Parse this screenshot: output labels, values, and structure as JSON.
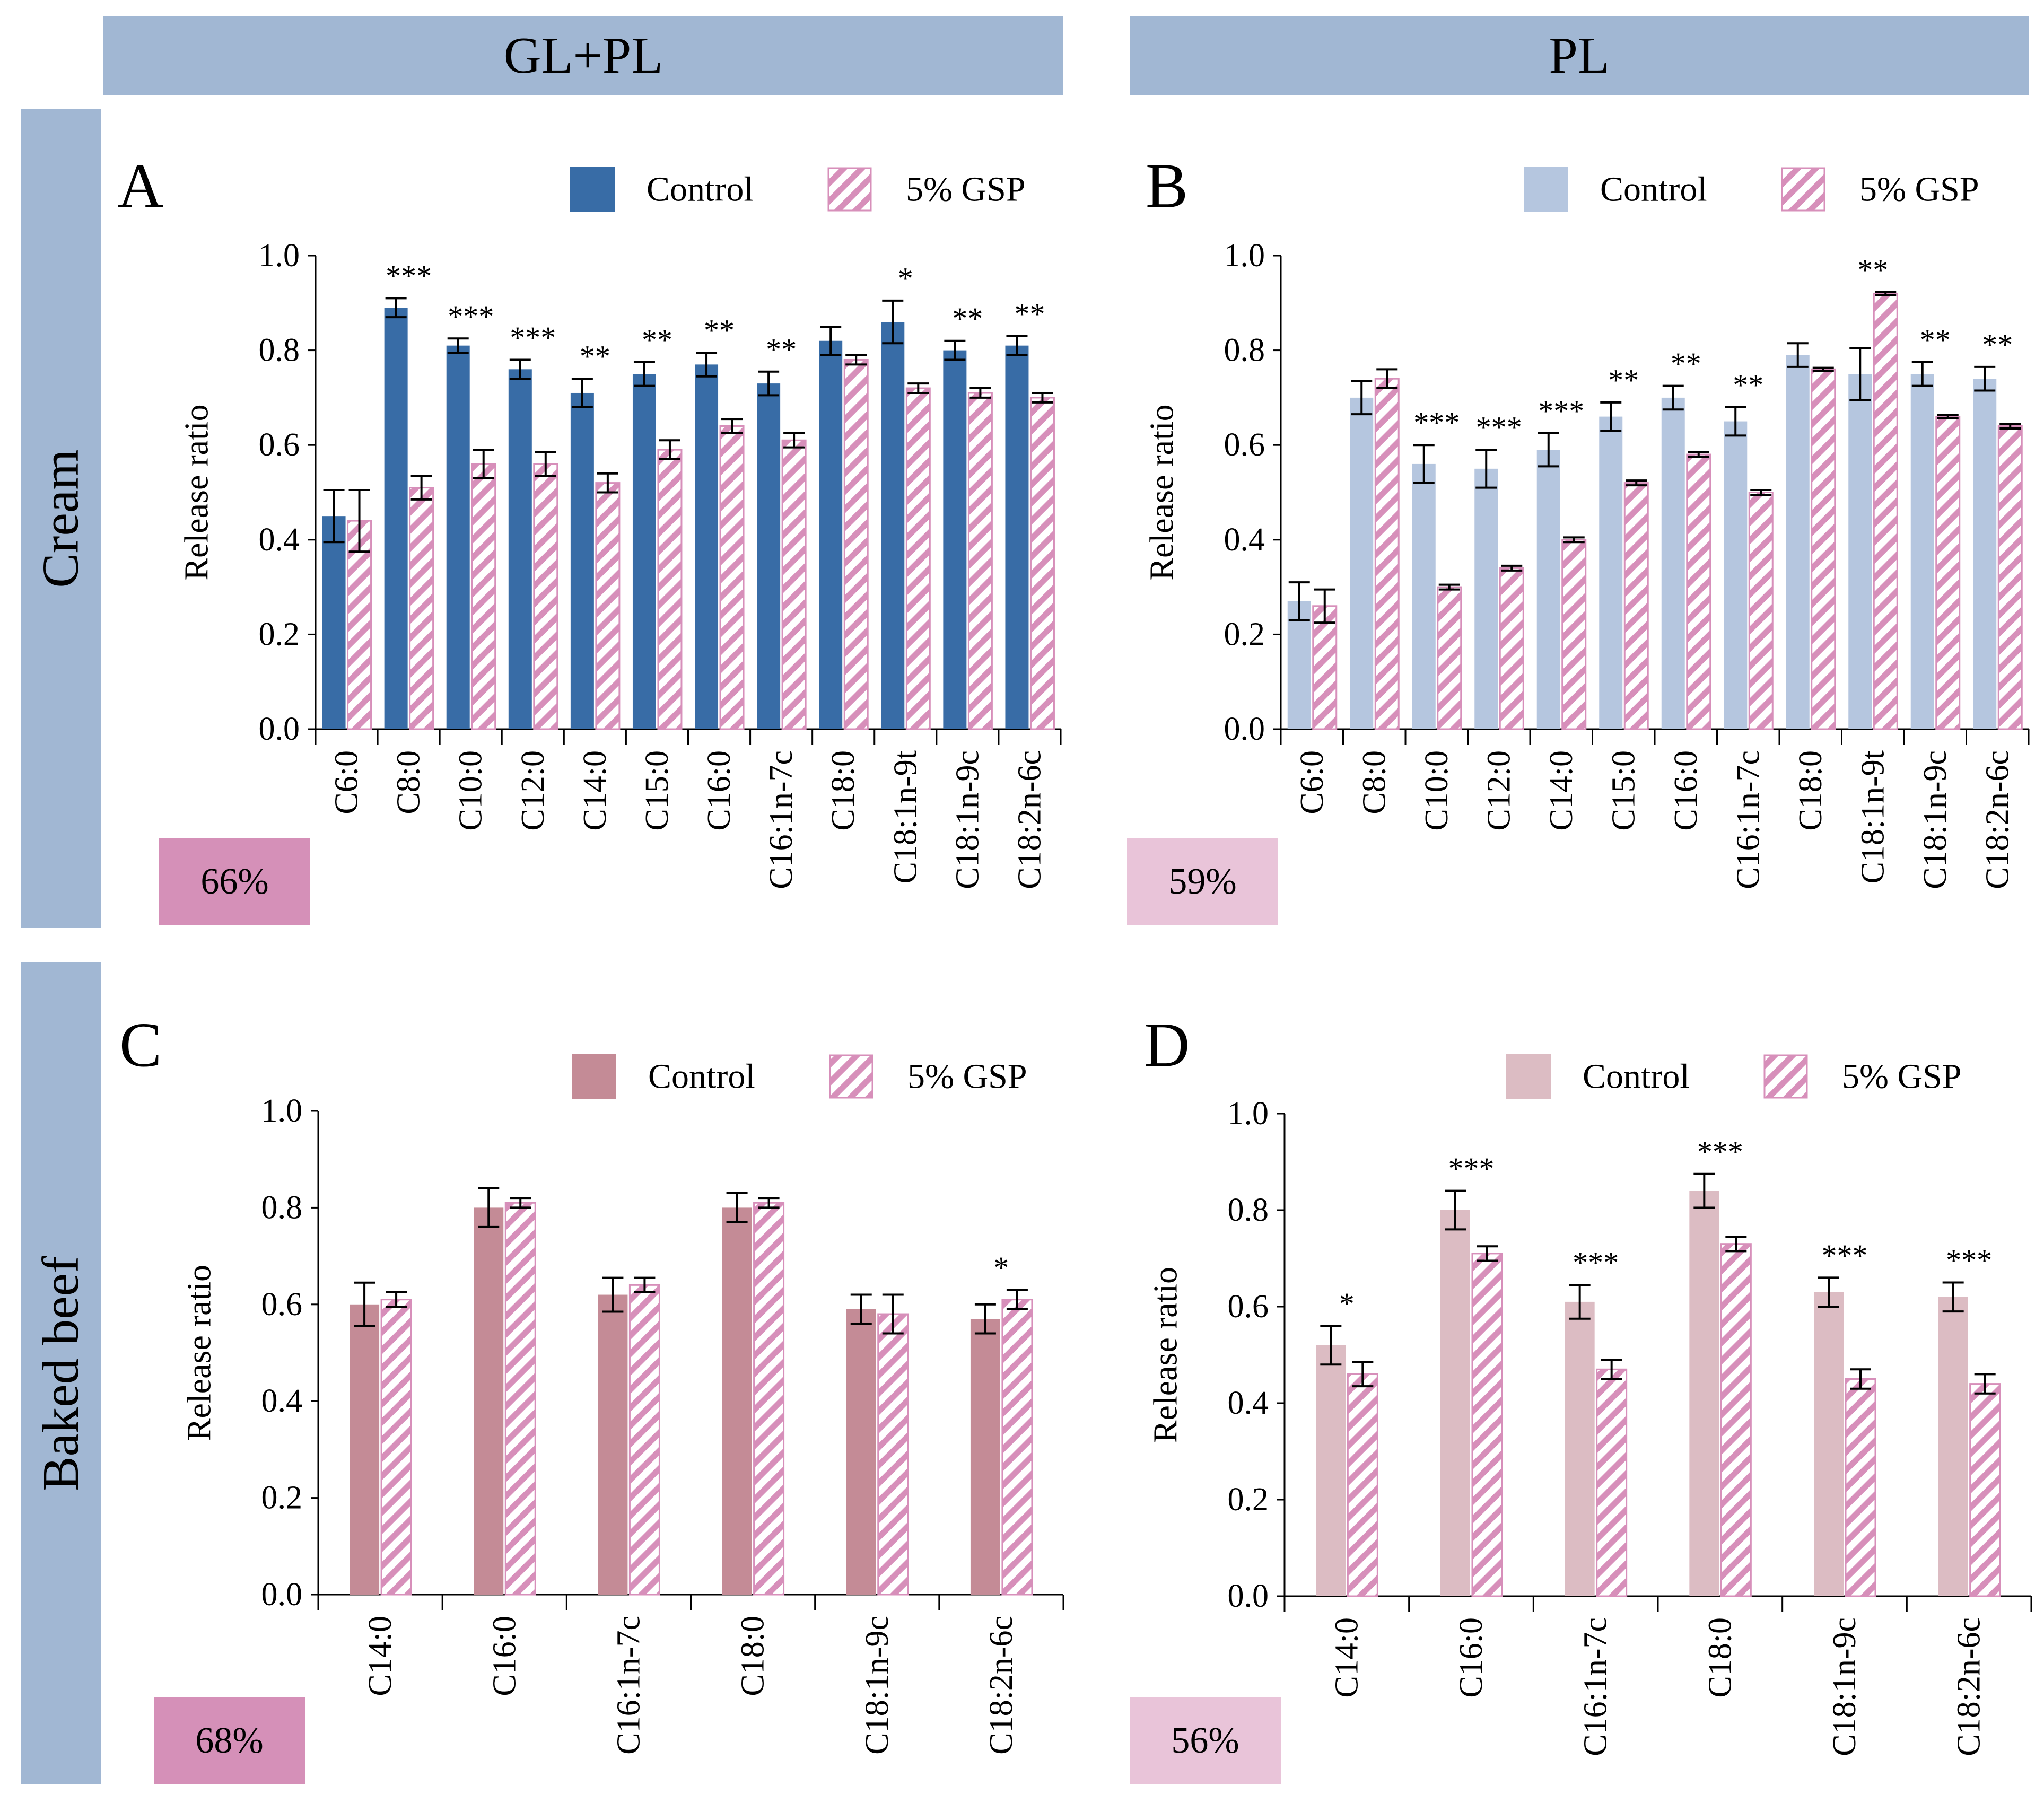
{
  "headers": {
    "col1": "GL+PL",
    "col2": "PL",
    "row1": "Cream",
    "row2": "Baked beef"
  },
  "colors": {
    "header_bg": "#a1b7d3",
    "hatch": "#d78fba",
    "badge_dark": "#d590b8",
    "badge_light": "#e9c4d9",
    "control_A": "#386ca6",
    "control_B": "#b5c6df",
    "control_C": "#c48b96",
    "control_D": "#dcbcc3"
  },
  "chart_data": [
    {
      "id": "A",
      "type": "bar",
      "panel_label": "A",
      "ylabel": "Release ratio",
      "ylim": [
        0,
        1.0
      ],
      "yticks": [
        "0.0",
        "0.2",
        "0.4",
        "0.6",
        "0.8",
        "1.0"
      ],
      "legend": [
        "Control",
        "5% GSP"
      ],
      "badge": "66%",
      "categories": [
        "C6:0",
        "C8:0",
        "C10:0",
        "C12:0",
        "C14:0",
        "C15:0",
        "C16:0",
        "C16:1n-7c",
        "C18:0",
        "C18:1n-9t",
        "C18:1n-9c",
        "C18:2n-6c"
      ],
      "series": [
        {
          "name": "Control",
          "values": [
            0.45,
            0.89,
            0.81,
            0.76,
            0.71,
            0.75,
            0.77,
            0.73,
            0.82,
            0.86,
            0.8,
            0.81
          ],
          "errors": [
            0.055,
            0.02,
            0.015,
            0.02,
            0.03,
            0.025,
            0.025,
            0.025,
            0.03,
            0.045,
            0.02,
            0.02
          ]
        },
        {
          "name": "5% GSP",
          "values": [
            0.44,
            0.51,
            0.56,
            0.56,
            0.52,
            0.59,
            0.64,
            0.61,
            0.78,
            0.72,
            0.71,
            0.7
          ],
          "errors": [
            0.065,
            0.025,
            0.03,
            0.025,
            0.02,
            0.02,
            0.015,
            0.015,
            0.01,
            0.01,
            0.01,
            0.01
          ]
        }
      ],
      "significance": [
        "",
        "***",
        "***",
        "***",
        "**",
        "**",
        "**",
        "**",
        "",
        "*",
        "**",
        "**"
      ]
    },
    {
      "id": "B",
      "type": "bar",
      "panel_label": "B",
      "ylabel": "Release ratio",
      "ylim": [
        0,
        1.0
      ],
      "yticks": [
        "0.0",
        "0.2",
        "0.4",
        "0.6",
        "0.8",
        "1.0"
      ],
      "legend": [
        "Control",
        "5% GSP"
      ],
      "badge": "59%",
      "categories": [
        "C6:0",
        "C8:0",
        "C10:0",
        "C12:0",
        "C14:0",
        "C15:0",
        "C16:0",
        "C16:1n-7c",
        "C18:0",
        "C18:1n-9t",
        "C18:1n-9c",
        "C18:2n-6c"
      ],
      "series": [
        {
          "name": "Control",
          "values": [
            0.27,
            0.7,
            0.56,
            0.55,
            0.59,
            0.66,
            0.7,
            0.65,
            0.79,
            0.75,
            0.75,
            0.74
          ],
          "errors": [
            0.04,
            0.035,
            0.04,
            0.04,
            0.035,
            0.03,
            0.025,
            0.03,
            0.025,
            0.055,
            0.025,
            0.025
          ]
        },
        {
          "name": "5% GSP",
          "values": [
            0.26,
            0.74,
            0.3,
            0.34,
            0.4,
            0.52,
            0.58,
            0.5,
            0.76,
            0.92,
            0.66,
            0.64
          ],
          "errors": [
            0.035,
            0.02,
            0.005,
            0.005,
            0.005,
            0.005,
            0.005,
            0.005,
            0.003,
            0.003,
            0.003,
            0.005
          ]
        }
      ],
      "significance": [
        "",
        "",
        "***",
        "***",
        "***",
        "**",
        "**",
        "**",
        "",
        "**",
        "**",
        "**"
      ]
    },
    {
      "id": "C",
      "type": "bar",
      "panel_label": "C",
      "ylabel": "Release ratio",
      "ylim": [
        0,
        1.0
      ],
      "yticks": [
        "0.0",
        "0.2",
        "0.4",
        "0.6",
        "0.8",
        "1.0"
      ],
      "legend": [
        "Control",
        "5% GSP"
      ],
      "badge": "68%",
      "categories": [
        "C14:0",
        "C16:0",
        "C16:1n-7c",
        "C18:0",
        "C18:1n-9c",
        "C18:2n-6c"
      ],
      "series": [
        {
          "name": "Control",
          "values": [
            0.6,
            0.8,
            0.62,
            0.8,
            0.59,
            0.57
          ],
          "errors": [
            0.045,
            0.04,
            0.035,
            0.03,
            0.03,
            0.03
          ]
        },
        {
          "name": "5% GSP",
          "values": [
            0.61,
            0.81,
            0.64,
            0.81,
            0.58,
            0.61
          ],
          "errors": [
            0.015,
            0.01,
            0.015,
            0.01,
            0.04,
            0.02
          ]
        }
      ],
      "significance": [
        "",
        "",
        "",
        "",
        "",
        "*"
      ]
    },
    {
      "id": "D",
      "type": "bar",
      "panel_label": "D",
      "ylabel": "Release ratio",
      "ylim": [
        0,
        1.0
      ],
      "yticks": [
        "0.0",
        "0.2",
        "0.4",
        "0.6",
        "0.8",
        "1.0"
      ],
      "legend": [
        "Control",
        "5% GSP"
      ],
      "badge": "56%",
      "categories": [
        "C14:0",
        "C16:0",
        "C16:1n-7c",
        "C18:0",
        "C18:1n-9c",
        "C18:2n-6c"
      ],
      "series": [
        {
          "name": "Control",
          "values": [
            0.52,
            0.8,
            0.61,
            0.84,
            0.63,
            0.62
          ],
          "errors": [
            0.04,
            0.04,
            0.035,
            0.035,
            0.03,
            0.03
          ]
        },
        {
          "name": "5% GSP",
          "values": [
            0.46,
            0.71,
            0.47,
            0.73,
            0.45,
            0.44
          ],
          "errors": [
            0.025,
            0.015,
            0.02,
            0.015,
            0.02,
            0.02
          ]
        }
      ],
      "significance": [
        "*",
        "***",
        "***",
        "***",
        "***",
        "***"
      ]
    }
  ]
}
